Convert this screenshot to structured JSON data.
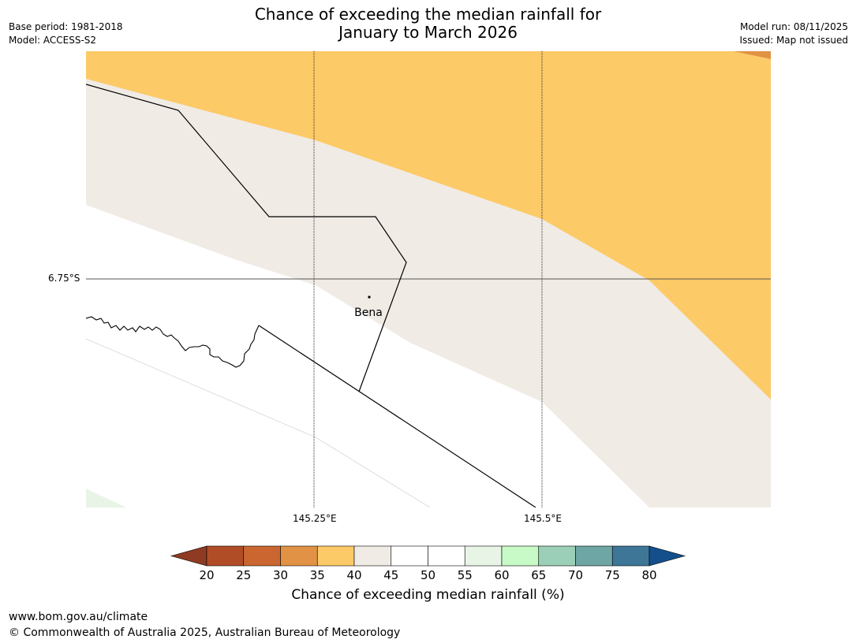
{
  "title": {
    "line1": "Chance of exceeding the median rainfall for",
    "line2": "January to March 2026"
  },
  "meta_left": {
    "base_period": "Base period: 1981-2018",
    "model": "Model: ACCESS-S2"
  },
  "meta_right": {
    "model_run": "Model run: 08/11/2025",
    "issued": "Issued: Map not issued"
  },
  "map": {
    "lat_label": "6.75°S",
    "lon_labels": [
      "145.25°E",
      "145.5°E"
    ],
    "place_label": "Bena",
    "colors": {
      "band_35_40": "#fdca68",
      "band_40_45": "#f0ebe5",
      "band_30_35": "#e19244",
      "band_55_60": "#e8f5e6",
      "background": "#ffffff"
    }
  },
  "colorbar": {
    "ticks": [
      "20",
      "25",
      "30",
      "35",
      "40",
      "45",
      "50",
      "55",
      "60",
      "65",
      "70",
      "75",
      "80"
    ],
    "low_extend_color": "#8f3a22",
    "high_extend_color": "#144f8b",
    "colors": [
      "#b04d27",
      "#cb6630",
      "#e19244",
      "#fdca68",
      "#f0ebe5",
      "#ffffff",
      "#ffffff",
      "#e8f5e6",
      "#c8fac8",
      "#9ccfb7",
      "#6da6a5",
      "#3e7697"
    ],
    "label": "Chance of exceeding median rainfall (%)"
  },
  "footer": {
    "url": "www.bom.gov.au/climate",
    "copyright": "© Commonwealth of Australia 2025, Australian Bureau of Meteorology"
  }
}
